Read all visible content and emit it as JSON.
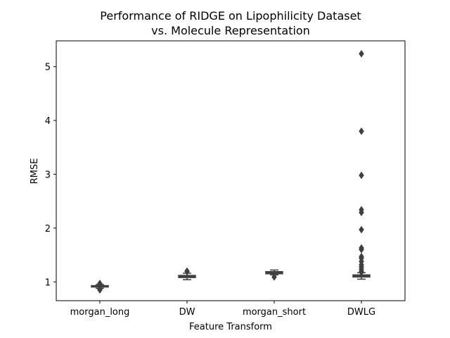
{
  "chart_data": {
    "type": "box",
    "title": "Performance of RIDGE on Lipophilicity Dataset",
    "subtitle": "vs. Molecule Representation",
    "xlabel": "Feature Transform",
    "ylabel": "RMSE",
    "categories": [
      "morgan_long",
      "DW",
      "morgan_short",
      "DWLG"
    ],
    "ylim": [
      0.65,
      5.48
    ],
    "yticks": [
      1,
      2,
      3,
      4,
      5
    ],
    "grid": false,
    "box_color": "#3f3f3f",
    "boxes": [
      {
        "category": "morgan_long",
        "whisker_low": 0.88,
        "q1": 0.905,
        "median": 0.915,
        "q3": 0.93,
        "whisker_high": 0.95,
        "outliers": [
          0.85,
          0.86,
          0.87,
          0.96,
          0.97
        ]
      },
      {
        "category": "DW",
        "whisker_low": 1.04,
        "q1": 1.08,
        "median": 1.1,
        "q3": 1.12,
        "whisker_high": 1.16,
        "outliers": [
          1.19,
          1.2
        ]
      },
      {
        "category": "morgan_short",
        "whisker_low": 1.13,
        "q1": 1.15,
        "median": 1.17,
        "q3": 1.19,
        "whisker_high": 1.22,
        "outliers": [
          1.09
        ]
      },
      {
        "category": "DWLG",
        "whisker_low": 1.05,
        "q1": 1.09,
        "median": 1.11,
        "q3": 1.13,
        "whisker_high": 1.17,
        "outliers": [
          1.18,
          1.2,
          1.24,
          1.28,
          1.32,
          1.38,
          1.44,
          1.47,
          1.6,
          1.63,
          1.97,
          2.29,
          2.34,
          2.98,
          3.8,
          5.24
        ]
      }
    ]
  }
}
